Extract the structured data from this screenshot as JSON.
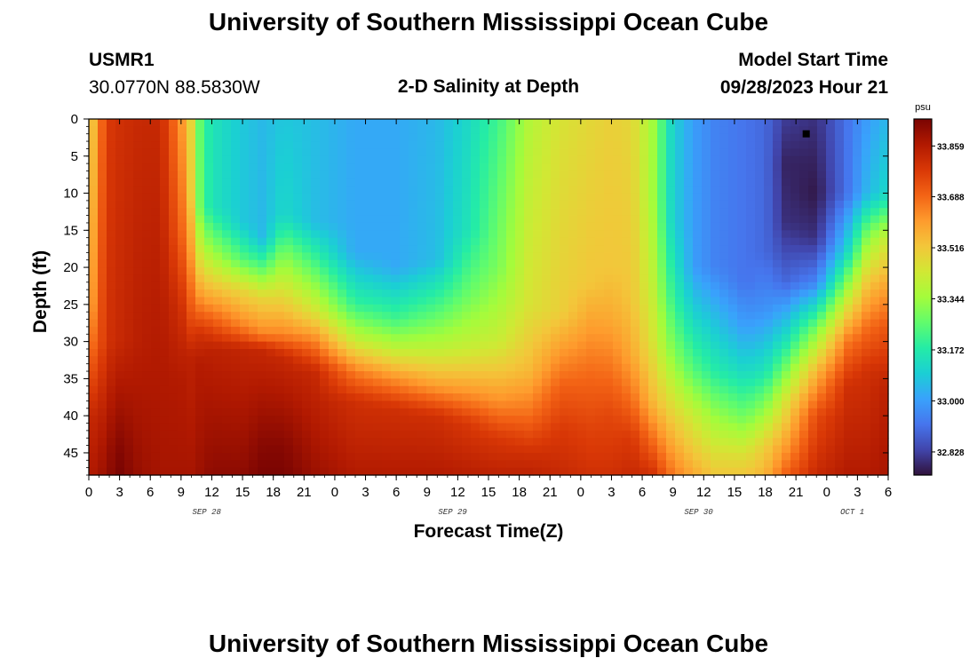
{
  "page": {
    "title_top": "University of Southern Mississippi Ocean Cube",
    "title_bottom": "University of Southern Mississippi Ocean Cube",
    "station_id": "USMR1",
    "station_coords": "30.0770N  88.5830W",
    "plot_title": "2-D Salinity at Depth",
    "model_start_label": "Model Start Time",
    "model_start_value": "09/28/2023 Hour 21"
  },
  "colors": {
    "colormap": [
      "#30123b",
      "#4145ab",
      "#4675ed",
      "#39a2fc",
      "#1bcfd4",
      "#24eca6",
      "#61fc6c",
      "#a4fc3b",
      "#d1e834",
      "#f3c63a",
      "#fe9b2d",
      "#f36315",
      "#d93806",
      "#b11901",
      "#7a0402"
    ]
  },
  "chart_data": {
    "type": "heatmap",
    "xlabel": "Forecast Time(Z)",
    "ylabel": "Depth (ft)",
    "colorbar_unit": "psu",
    "colorbar_ticks": [
      "33.859",
      "33.688",
      "33.516",
      "33.344",
      "33.172",
      "33.000",
      "32.828"
    ],
    "colorbar_values": [
      33.859,
      33.688,
      33.516,
      33.344,
      33.172,
      33.0,
      32.828
    ],
    "value_range": [
      32.75,
      33.95
    ],
    "x_hours_range": [
      0,
      78
    ],
    "x_tick_labels": [
      "0",
      "3",
      "6",
      "9",
      "12",
      "15",
      "18",
      "21",
      "0",
      "3",
      "6",
      "9",
      "12",
      "15",
      "18",
      "21",
      "0",
      "3",
      "6",
      "9",
      "12",
      "15",
      "18",
      "21",
      "0",
      "3",
      "6"
    ],
    "date_labels": [
      {
        "text": "SEP 28",
        "hour": 11.5
      },
      {
        "text": "SEP 29",
        "hour": 35.5
      },
      {
        "text": "SEP 30",
        "hour": 59.5
      },
      {
        "text": "OCT 1",
        "hour": 74.5
      }
    ],
    "y_range": [
      0,
      48
    ],
    "y_reversed": true,
    "y_tick_labels": [
      "0",
      "5",
      "10",
      "15",
      "20",
      "25",
      "30",
      "35",
      "40",
      "45"
    ],
    "y_tick_values": [
      0,
      5,
      10,
      15,
      20,
      25,
      30,
      35,
      40,
      45
    ],
    "marker": {
      "hour": 70,
      "depth": 2
    },
    "grid": false,
    "columns": [
      {
        "hour": 0,
        "profile": [
          [
            0,
            33.45
          ],
          [
            10,
            33.48
          ],
          [
            25,
            33.55
          ],
          [
            33,
            33.7
          ],
          [
            40,
            33.82
          ],
          [
            48,
            33.86
          ]
        ]
      },
      {
        "hour": 1,
        "profile": [
          [
            0,
            33.66
          ],
          [
            30,
            33.73
          ],
          [
            40,
            33.83
          ],
          [
            48,
            33.88
          ]
        ]
      },
      {
        "hour": 2,
        "profile": [
          [
            0,
            33.78
          ],
          [
            30,
            33.8
          ],
          [
            44,
            33.9
          ],
          [
            48,
            33.92
          ]
        ]
      },
      {
        "hour": 3,
        "profile": [
          [
            0,
            33.8
          ],
          [
            30,
            33.82
          ],
          [
            44,
            33.93
          ],
          [
            48,
            33.95
          ]
        ]
      },
      {
        "hour": 5,
        "profile": [
          [
            0,
            33.82
          ],
          [
            30,
            33.85
          ],
          [
            48,
            33.9
          ]
        ]
      },
      {
        "hour": 7,
        "profile": [
          [
            0,
            33.82
          ],
          [
            30,
            33.86
          ],
          [
            48,
            33.88
          ]
        ]
      },
      {
        "hour": 9,
        "profile": [
          [
            0,
            33.62
          ],
          [
            15,
            33.7
          ],
          [
            25,
            33.8
          ],
          [
            35,
            33.86
          ],
          [
            48,
            33.88
          ]
        ]
      },
      {
        "hour": 10,
        "profile": [
          [
            0,
            33.48
          ],
          [
            10,
            33.5
          ],
          [
            18,
            33.6
          ],
          [
            26,
            33.72
          ],
          [
            32,
            33.84
          ],
          [
            48,
            33.88
          ]
        ]
      },
      {
        "hour": 11,
        "profile": [
          [
            0,
            33.22
          ],
          [
            12,
            33.24
          ],
          [
            18,
            33.4
          ],
          [
            24,
            33.6
          ],
          [
            29,
            33.8
          ],
          [
            33,
            33.86
          ],
          [
            48,
            33.9
          ]
        ]
      },
      {
        "hour": 12,
        "profile": [
          [
            0,
            33.15
          ],
          [
            12,
            33.15
          ],
          [
            18,
            33.35
          ],
          [
            24,
            33.58
          ],
          [
            28,
            33.74
          ],
          [
            31,
            33.84
          ],
          [
            48,
            33.92
          ]
        ]
      },
      {
        "hour": 15,
        "profile": [
          [
            0,
            33.08
          ],
          [
            14,
            33.08
          ],
          [
            19,
            33.25
          ],
          [
            23,
            33.48
          ],
          [
            28,
            33.65
          ],
          [
            31,
            33.83
          ],
          [
            48,
            33.92
          ]
        ]
      },
      {
        "hour": 17,
        "profile": [
          [
            0,
            33.05
          ],
          [
            16,
            33.05
          ],
          [
            20,
            33.25
          ],
          [
            24,
            33.48
          ],
          [
            29,
            33.64
          ],
          [
            31,
            33.82
          ],
          [
            44,
            33.93
          ],
          [
            48,
            33.95
          ]
        ]
      },
      {
        "hour": 19,
        "profile": [
          [
            0,
            33.08
          ],
          [
            13,
            33.12
          ],
          [
            18,
            33.3
          ],
          [
            24,
            33.48
          ],
          [
            29,
            33.64
          ],
          [
            32,
            33.82
          ],
          [
            44,
            33.93
          ],
          [
            48,
            33.95
          ]
        ]
      },
      {
        "hour": 22,
        "profile": [
          [
            0,
            33.06
          ],
          [
            14,
            33.06
          ],
          [
            20,
            33.25
          ],
          [
            26,
            33.45
          ],
          [
            30,
            33.65
          ],
          [
            34,
            33.82
          ],
          [
            48,
            33.9
          ]
        ]
      },
      {
        "hour": 26,
        "profile": [
          [
            0,
            33.02
          ],
          [
            18,
            33.02
          ],
          [
            25,
            33.2
          ],
          [
            30,
            33.42
          ],
          [
            34,
            33.65
          ],
          [
            38,
            33.8
          ],
          [
            48,
            33.86
          ]
        ]
      },
      {
        "hour": 30,
        "profile": [
          [
            0,
            33.02
          ],
          [
            20,
            33.02
          ],
          [
            27,
            33.22
          ],
          [
            31,
            33.4
          ],
          [
            35,
            33.62
          ],
          [
            39,
            33.8
          ],
          [
            48,
            33.86
          ]
        ]
      },
      {
        "hour": 34,
        "profile": [
          [
            0,
            33.05
          ],
          [
            19,
            33.06
          ],
          [
            26,
            33.25
          ],
          [
            31,
            33.4
          ],
          [
            36,
            33.6
          ],
          [
            40,
            33.8
          ],
          [
            48,
            33.86
          ]
        ]
      },
      {
        "hour": 37,
        "profile": [
          [
            0,
            33.12
          ],
          [
            15,
            33.15
          ],
          [
            24,
            33.28
          ],
          [
            31,
            33.42
          ],
          [
            37,
            33.62
          ],
          [
            41,
            33.78
          ],
          [
            48,
            33.85
          ]
        ]
      },
      {
        "hour": 40,
        "profile": [
          [
            0,
            33.22
          ],
          [
            20,
            33.3
          ],
          [
            30,
            33.42
          ],
          [
            38,
            33.62
          ],
          [
            43,
            33.78
          ],
          [
            48,
            33.84
          ]
        ]
      },
      {
        "hour": 43,
        "profile": [
          [
            0,
            33.38
          ],
          [
            25,
            33.45
          ],
          [
            34,
            33.55
          ],
          [
            40,
            33.68
          ],
          [
            45,
            33.8
          ],
          [
            48,
            33.84
          ]
        ]
      },
      {
        "hour": 46,
        "profile": [
          [
            0,
            33.45
          ],
          [
            26,
            33.5
          ],
          [
            31,
            33.6
          ],
          [
            36,
            33.7
          ],
          [
            42,
            33.78
          ],
          [
            48,
            33.82
          ]
        ]
      },
      {
        "hour": 49,
        "profile": [
          [
            0,
            33.48
          ],
          [
            22,
            33.52
          ],
          [
            28,
            33.6
          ],
          [
            34,
            33.68
          ],
          [
            42,
            33.76
          ],
          [
            48,
            33.8
          ]
        ]
      },
      {
        "hour": 51,
        "profile": [
          [
            0,
            33.5
          ],
          [
            20,
            33.52
          ],
          [
            27,
            33.58
          ],
          [
            33,
            33.66
          ],
          [
            40,
            33.75
          ],
          [
            48,
            33.8
          ]
        ]
      },
      {
        "hour": 53,
        "profile": [
          [
            0,
            33.48
          ],
          [
            24,
            33.52
          ],
          [
            32,
            33.58
          ],
          [
            38,
            33.68
          ],
          [
            43,
            33.78
          ],
          [
            48,
            33.82
          ]
        ]
      },
      {
        "hour": 55,
        "profile": [
          [
            0,
            33.35
          ],
          [
            10,
            33.35
          ],
          [
            22,
            33.4
          ],
          [
            30,
            33.45
          ],
          [
            38,
            33.55
          ],
          [
            44,
            33.7
          ],
          [
            48,
            33.8
          ]
        ]
      },
      {
        "hour": 57,
        "profile": [
          [
            0,
            33.1
          ],
          [
            14,
            33.1
          ],
          [
            24,
            33.2
          ],
          [
            32,
            33.32
          ],
          [
            38,
            33.45
          ],
          [
            44,
            33.58
          ],
          [
            48,
            33.66
          ]
        ]
      },
      {
        "hour": 59,
        "profile": [
          [
            0,
            33.0
          ],
          [
            20,
            33.0
          ],
          [
            26,
            33.1
          ],
          [
            34,
            33.25
          ],
          [
            40,
            33.42
          ],
          [
            45,
            33.52
          ],
          [
            48,
            33.58
          ]
        ]
      },
      {
        "hour": 61,
        "profile": [
          [
            0,
            32.95
          ],
          [
            20,
            32.95
          ],
          [
            26,
            33.05
          ],
          [
            34,
            33.18
          ],
          [
            40,
            33.34
          ],
          [
            45,
            33.46
          ],
          [
            48,
            33.52
          ]
        ]
      },
      {
        "hour": 64,
        "profile": [
          [
            0,
            32.92
          ],
          [
            22,
            32.92
          ],
          [
            28,
            33.0
          ],
          [
            34,
            33.12
          ],
          [
            40,
            33.28
          ],
          [
            45,
            33.45
          ],
          [
            48,
            33.52
          ]
        ]
      },
      {
        "hour": 66,
        "profile": [
          [
            0,
            32.9
          ],
          [
            18,
            32.9
          ],
          [
            26,
            32.98
          ],
          [
            34,
            33.15
          ],
          [
            40,
            33.36
          ],
          [
            44,
            33.5
          ],
          [
            48,
            33.56
          ]
        ]
      },
      {
        "hour": 68,
        "profile": [
          [
            0,
            32.82
          ],
          [
            6,
            32.78
          ],
          [
            14,
            32.8
          ],
          [
            22,
            32.9
          ],
          [
            30,
            33.15
          ],
          [
            38,
            33.45
          ],
          [
            44,
            33.6
          ],
          [
            48,
            33.7
          ]
        ]
      },
      {
        "hour": 71,
        "profile": [
          [
            0,
            32.8
          ],
          [
            10,
            32.76
          ],
          [
            16,
            32.8
          ],
          [
            22,
            32.95
          ],
          [
            28,
            33.28
          ],
          [
            34,
            33.55
          ],
          [
            40,
            33.74
          ],
          [
            48,
            33.82
          ]
        ]
      },
      {
        "hour": 74,
        "profile": [
          [
            0,
            32.92
          ],
          [
            10,
            32.92
          ],
          [
            18,
            33.12
          ],
          [
            24,
            33.4
          ],
          [
            30,
            33.66
          ],
          [
            36,
            33.8
          ],
          [
            48,
            33.86
          ]
        ]
      },
      {
        "hour": 76,
        "profile": [
          [
            0,
            33.0
          ],
          [
            10,
            33.05
          ],
          [
            16,
            33.32
          ],
          [
            22,
            33.52
          ],
          [
            28,
            33.68
          ],
          [
            34,
            33.8
          ],
          [
            48,
            33.86
          ]
        ]
      },
      {
        "hour": 78,
        "profile": [
          [
            0,
            33.05
          ],
          [
            10,
            33.12
          ],
          [
            16,
            33.42
          ],
          [
            22,
            33.58
          ],
          [
            28,
            33.72
          ],
          [
            36,
            33.84
          ],
          [
            48,
            33.88
          ]
        ]
      }
    ]
  }
}
